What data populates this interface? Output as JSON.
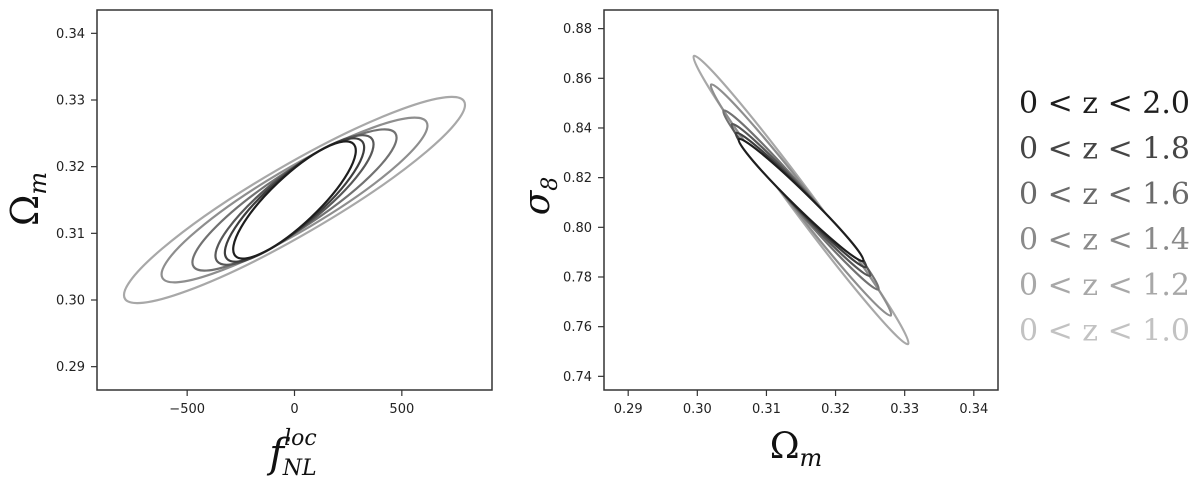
{
  "chart_data": [
    {
      "type": "scatter",
      "title": "",
      "xlim": [
        -920,
        920
      ],
      "ylim": [
        0.2865,
        0.3435
      ],
      "xticks": [
        -500,
        0,
        500
      ],
      "xtick_labels": [
        "−500",
        "0",
        "500"
      ],
      "yticks": [
        0.29,
        0.3,
        0.31,
        0.32,
        0.33,
        0.34
      ],
      "ytick_labels": [
        "0.29",
        "0.30",
        "0.31",
        "0.32",
        "0.33",
        "0.34"
      ],
      "xlabel": {
        "main": "f",
        "sup": "loc",
        "sub": "NL"
      },
      "ylabel": {
        "main": "Ω",
        "sub": "m"
      },
      "grid": false,
      "ellipses": [
        {
          "name": "0 < z < 1.0",
          "cx": 0,
          "cy": 0.315,
          "tips": [
            [
              -790,
              0.3002
            ],
            [
              790,
              0.3298
            ]
          ],
          "width": 0.0052,
          "color": "#a8a8a8"
        },
        {
          "name": "0 < z < 1.2",
          "cx": 0,
          "cy": 0.315,
          "tips": [
            [
              -615,
              0.3033
            ],
            [
              615,
              0.3267
            ]
          ],
          "width": 0.0046,
          "color": "#8e8e8e"
        },
        {
          "name": "0 < z < 1.4",
          "cx": 0,
          "cy": 0.315,
          "tips": [
            [
              -470,
              0.305
            ],
            [
              470,
              0.325
            ]
          ],
          "width": 0.0042,
          "color": "#727272"
        },
        {
          "name": "0 < z < 1.6",
          "cx": 0,
          "cy": 0.315,
          "tips": [
            [
              -360,
              0.3058
            ],
            [
              360,
              0.3242
            ]
          ],
          "width": 0.004,
          "color": "#585858"
        },
        {
          "name": "0 < z < 1.8",
          "cx": 0,
          "cy": 0.315,
          "tips": [
            [
              -315,
              0.3062
            ],
            [
              315,
              0.3238
            ]
          ],
          "width": 0.0038,
          "color": "#3e3e3e"
        },
        {
          "name": "0 < z < 2.0",
          "cx": 0,
          "cy": 0.315,
          "tips": [
            [
              -275,
              0.3066
            ],
            [
              275,
              0.3234
            ]
          ],
          "width": 0.0036,
          "color": "#1e1e1e"
        }
      ]
    },
    {
      "type": "scatter",
      "title": "",
      "xlim": [
        0.2865,
        0.3435
      ],
      "ylim": [
        0.7345,
        0.8875
      ],
      "xticks": [
        0.29,
        0.3,
        0.31,
        0.32,
        0.33,
        0.34
      ],
      "xtick_labels": [
        "0.29",
        "0.30",
        "0.31",
        "0.32",
        "0.33",
        "0.34"
      ],
      "yticks": [
        0.74,
        0.76,
        0.78,
        0.8,
        0.82,
        0.84,
        0.86,
        0.88
      ],
      "ytick_labels": [
        "0.74",
        "0.76",
        "0.78",
        "0.80",
        "0.82",
        "0.84",
        "0.86",
        "0.88"
      ],
      "xlabel": {
        "main": "Ω",
        "sub": "m"
      },
      "ylabel": {
        "main": "σ",
        "sub": "8"
      },
      "grid": false,
      "ellipses": [
        {
          "name": "0 < z < 1.0",
          "cx": 0.315,
          "cy": 0.811,
          "tips": [
            [
              0.2995,
              0.869
            ],
            [
              0.3305,
              0.753
            ]
          ],
          "width": 0.0047,
          "color": "#a8a8a8"
        },
        {
          "name": "0 < z < 1.2",
          "cx": 0.315,
          "cy": 0.811,
          "tips": [
            [
              0.302,
              0.8575
            ],
            [
              0.328,
              0.7645
            ]
          ],
          "width": 0.0042,
          "color": "#8e8e8e"
        },
        {
          "name": "0 < z < 1.4",
          "cx": 0.315,
          "cy": 0.811,
          "tips": [
            [
              0.3038,
              0.847
            ],
            [
              0.3262,
              0.775
            ]
          ],
          "width": 0.0038,
          "color": "#727272"
        },
        {
          "name": "0 < z < 1.6",
          "cx": 0.315,
          "cy": 0.811,
          "tips": [
            [
              0.305,
              0.8415
            ],
            [
              0.325,
              0.7805
            ]
          ],
          "width": 0.0035,
          "color": "#585858"
        },
        {
          "name": "0 < z < 1.8",
          "cx": 0.315,
          "cy": 0.811,
          "tips": [
            [
              0.3056,
              0.838
            ],
            [
              0.3244,
              0.784
            ]
          ],
          "width": 0.0033,
          "color": "#3e3e3e"
        },
        {
          "name": "0 < z < 2.0",
          "cx": 0.315,
          "cy": 0.811,
          "tips": [
            [
              0.306,
              0.8355
            ],
            [
              0.324,
              0.7865
            ]
          ],
          "width": 0.0032,
          "color": "#1e1e1e"
        }
      ]
    }
  ],
  "legend": {
    "placement": "right",
    "entries": [
      {
        "label": "0 < z < 2.0",
        "color": "#1e1e1e"
      },
      {
        "label": "0 < z < 1.8",
        "color": "#454545"
      },
      {
        "label": "0 < z < 1.6",
        "color": "#6a6a6a"
      },
      {
        "label": "0 < z < 1.4",
        "color": "#8a8a8a"
      },
      {
        "label": "0 < z < 1.2",
        "color": "#a8a8a8"
      },
      {
        "label": "0 < z < 1.0",
        "color": "#c2c2c2"
      }
    ]
  }
}
